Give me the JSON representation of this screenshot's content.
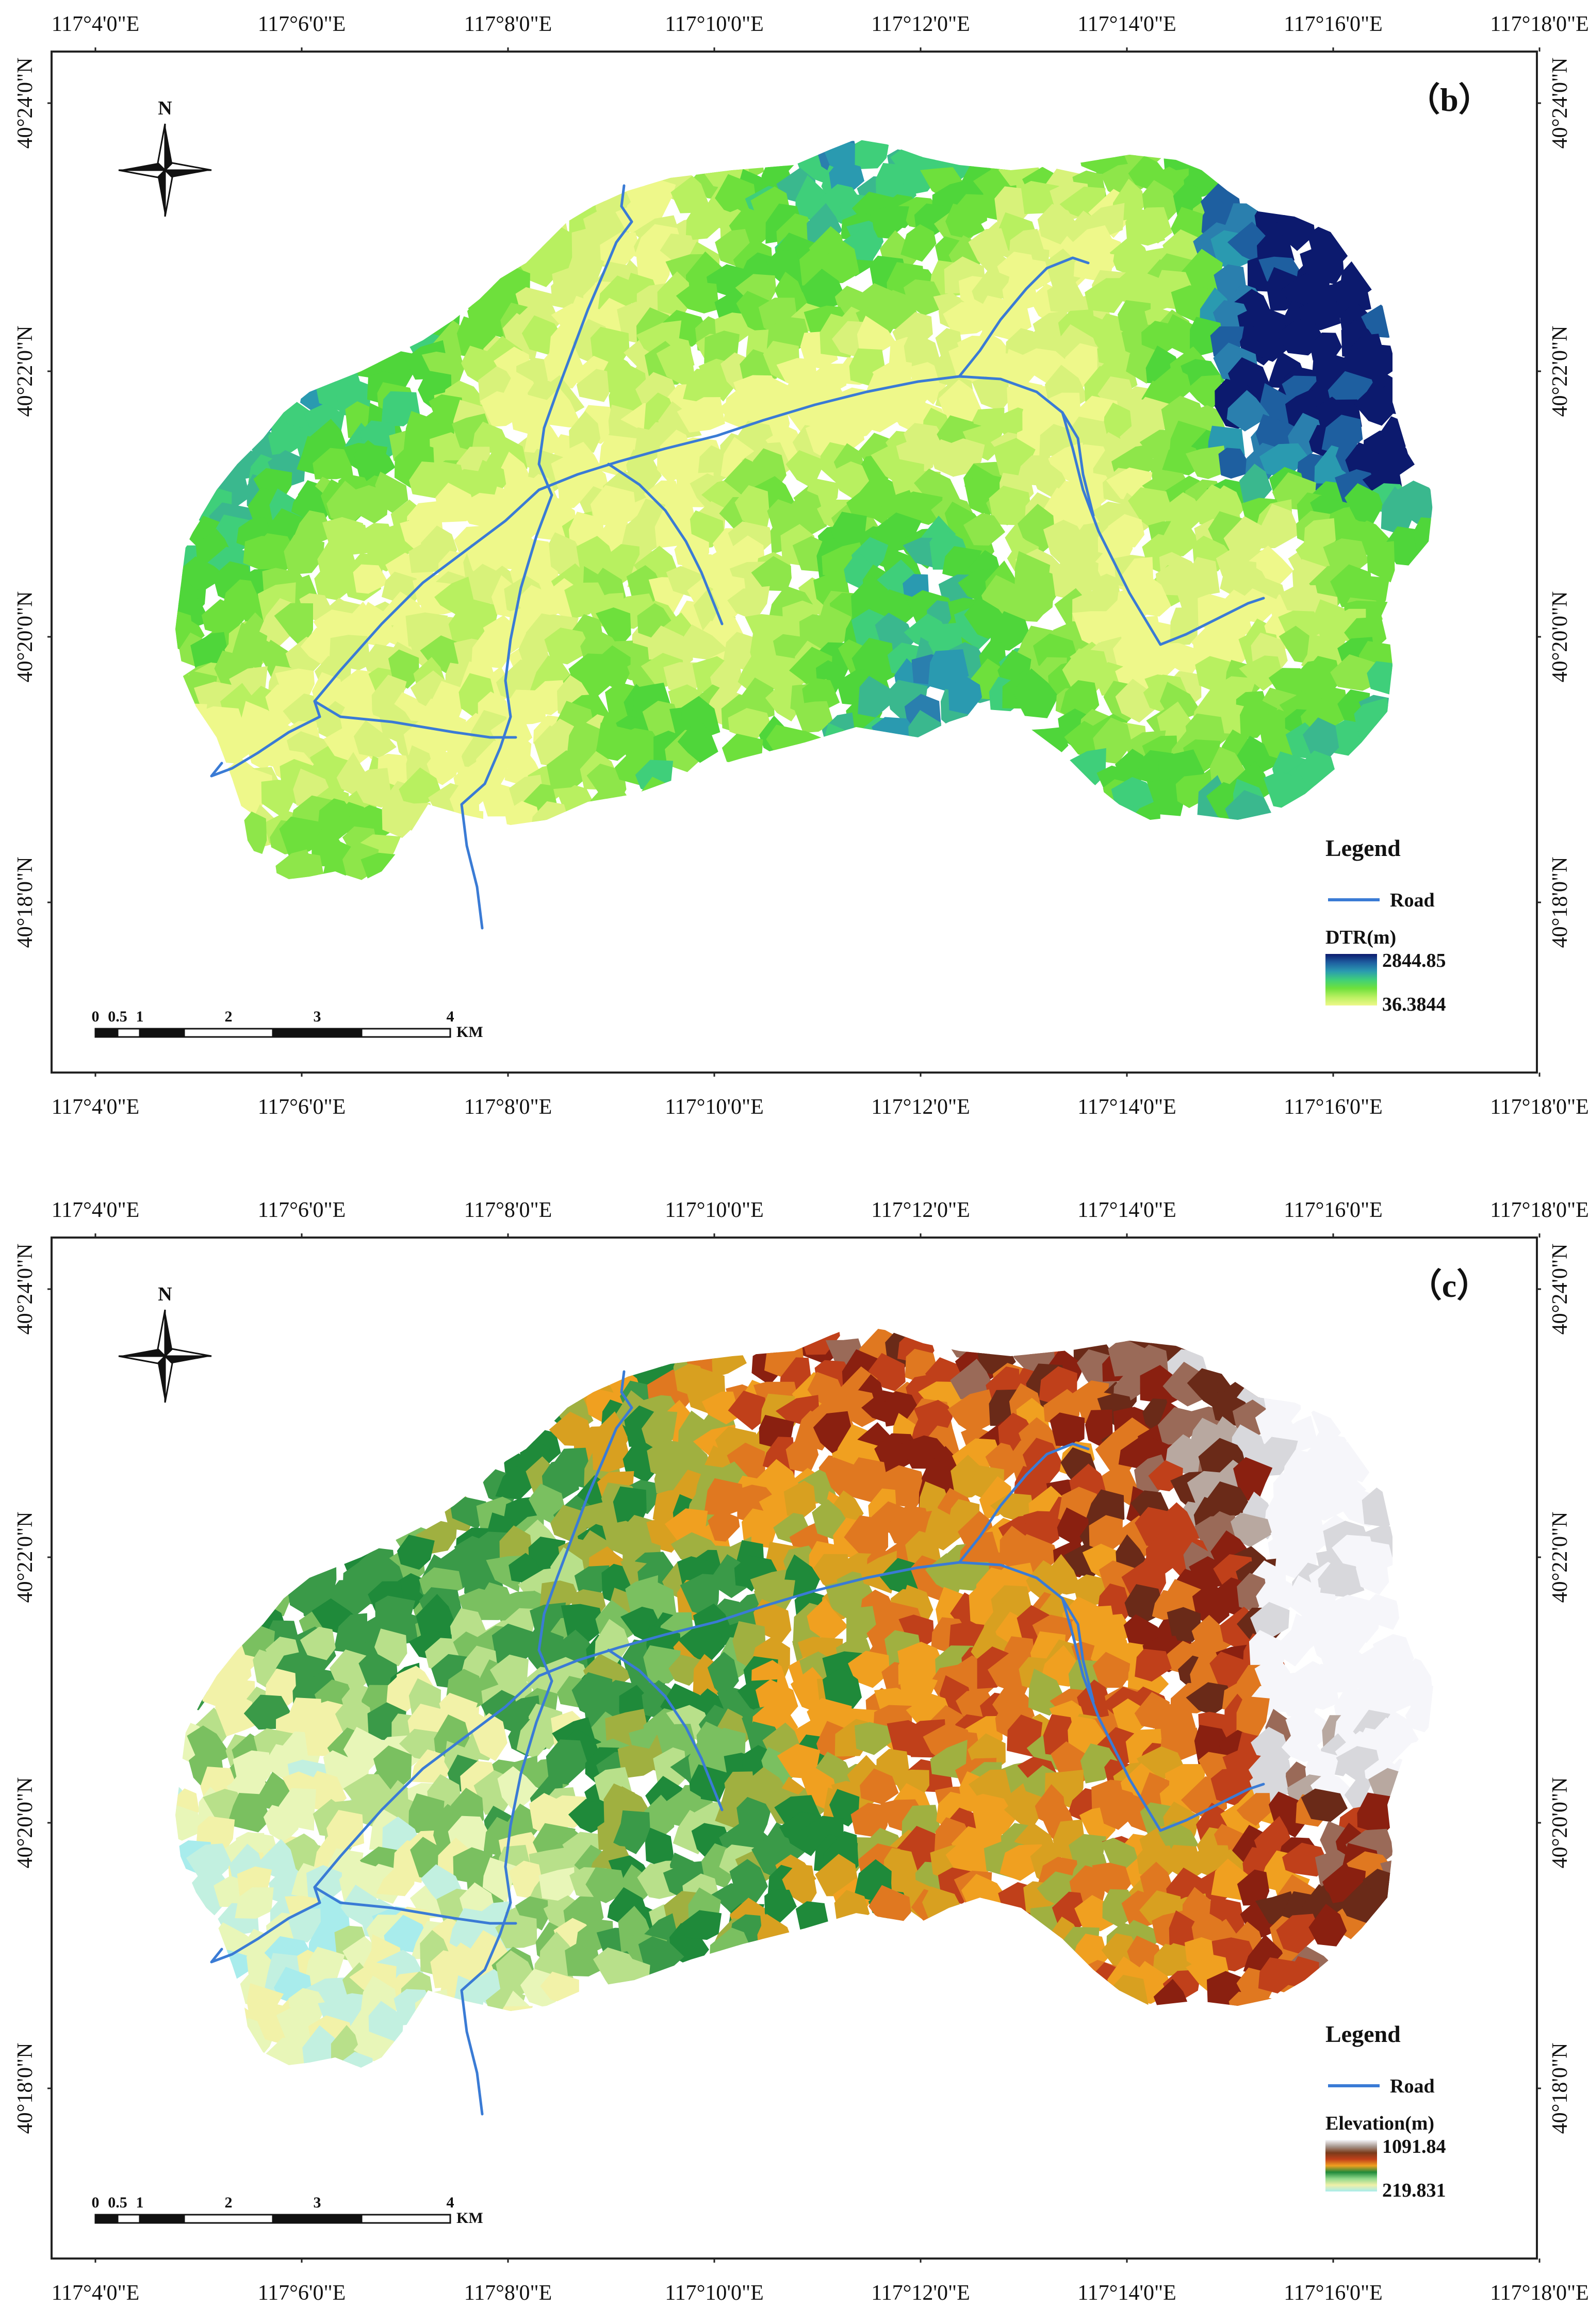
{
  "panels": [
    {
      "id": "b",
      "label": "（b）",
      "north_label": "N",
      "lon_ticks": [
        "117°4'0\"E",
        "117°6'0\"E",
        "117°8'0\"E",
        "117°10'0\"E",
        "117°12'0\"E",
        "117°14'0\"E",
        "117°16'0\"E",
        "117°18'0\"E"
      ],
      "lat_ticks": [
        "40°24'0\"N",
        "40°22'0\"N",
        "40°20'0\"N",
        "40°18'0\"N"
      ],
      "legend": {
        "title": "Legend",
        "road_label": "Road",
        "ramp_title": "DTR(m)",
        "max_label": "2844.85",
        "min_label": "36.3844",
        "ramp_colors": [
          "#0c1a6e",
          "#1e5fa0",
          "#2a9ab0",
          "#3fcf7a",
          "#6ee03c",
          "#b8f060",
          "#eef88a"
        ]
      },
      "scale": {
        "ticks": [
          "0",
          "0.5",
          "1",
          "2",
          "3",
          "4"
        ],
        "unit": "KM"
      },
      "fill_palette": [
        "#eef88a",
        "#d8f27a",
        "#b8f060",
        "#8ee64a",
        "#6ee03c",
        "#4fd63a",
        "#3fcf7a",
        "#3ab88e",
        "#2a9ab0",
        "#2a7fae",
        "#1e5fa0",
        "#0c1a6e"
      ],
      "road_color": "#3a7bd5"
    },
    {
      "id": "c",
      "label": "（c）",
      "north_label": "N",
      "lon_ticks": [
        "117°4'0\"E",
        "117°6'0\"E",
        "117°8'0\"E",
        "117°10'0\"E",
        "117°12'0\"E",
        "117°14'0\"E",
        "117°16'0\"E",
        "117°18'0\"E"
      ],
      "lat_ticks": [
        "40°24'0\"N",
        "40°22'0\"N",
        "40°20'0\"N",
        "40°18'0\"N"
      ],
      "legend": {
        "title": "Legend",
        "road_label": "Road",
        "ramp_title": "Elevation(m)",
        "max_label": "1091.84",
        "min_label": "219.831",
        "ramp_colors": [
          "#f6f6fa",
          "#a89890",
          "#7a3a1a",
          "#c0401a",
          "#f0a020",
          "#1f8a3a",
          "#8ed88a",
          "#f0f0a8",
          "#a8ecec"
        ]
      },
      "scale": {
        "ticks": [
          "0",
          "0.5",
          "1",
          "2",
          "3",
          "4"
        ],
        "unit": "KM"
      },
      "fill_palette": [
        "#a8ecec",
        "#c2f0e0",
        "#e8f6b8",
        "#f2f2a8",
        "#b8e08a",
        "#7ac060",
        "#3a9a48",
        "#1f8a3a",
        "#a0b040",
        "#d8a020",
        "#f0a020",
        "#e07820",
        "#c0401a",
        "#8a2010",
        "#6a2a18",
        "#9a6a58",
        "#b8a8a0",
        "#d8d8dc",
        "#f6f6fa"
      ],
      "road_color": "#3a7bd5"
    }
  ]
}
